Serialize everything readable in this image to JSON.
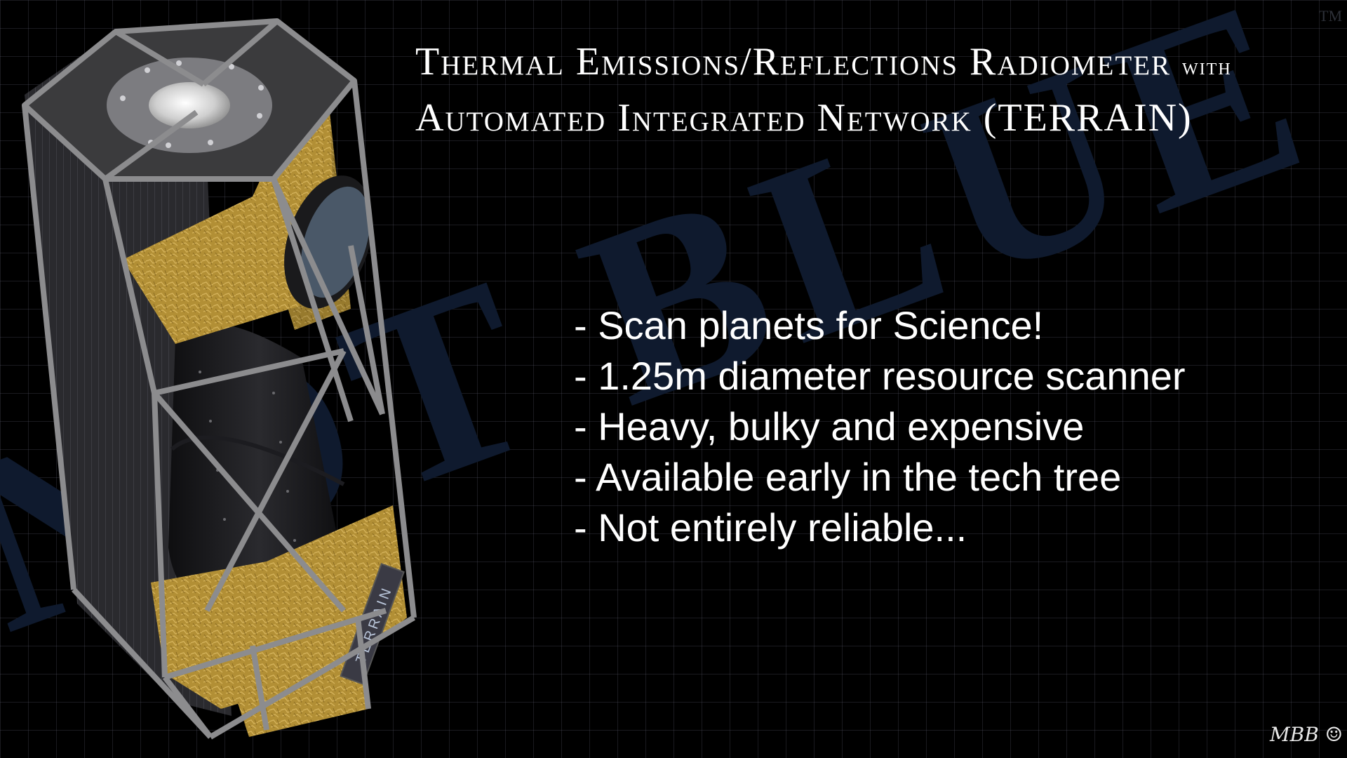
{
  "title": {
    "line1_main": "Thermal Emissions/Reflections Radiometer",
    "line1_suffix": "with",
    "line2": "Automated Integrated Network (TERRAIN)"
  },
  "bullets": [
    "- Scan planets for Science!",
    "- 1.25m diameter resource scanner",
    "- Heavy, bulky and expensive",
    "- Available early in the tech tree",
    "- Not entirely reliable..."
  ],
  "part_label": "TERRAIN",
  "watermark_text": "NOT BLUE",
  "trademark": "TM",
  "signature": "MBB ☺",
  "colors": {
    "background": "#000000",
    "grid": "#3a3a48",
    "watermark": "#0f1a2e",
    "foil": "#b8963a",
    "frame": "#8a8a8a",
    "text": "#ffffff"
  }
}
